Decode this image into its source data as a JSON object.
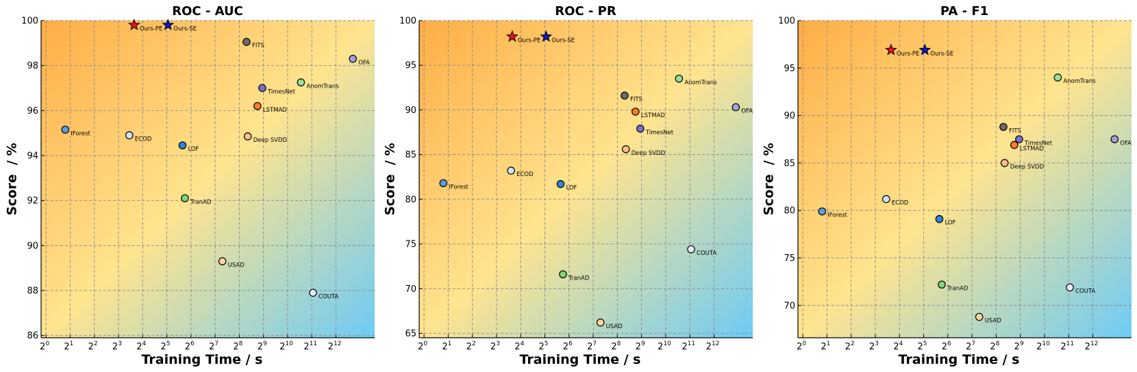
{
  "colors": {
    "bg_top_left": "#ffad45",
    "bg_mid": "#ffe48f",
    "bg_bottom_right": "#6ecbf6",
    "grid": "#888888",
    "star_pe": "#e8141e",
    "star_se": "#0a16c8"
  },
  "x_axis": {
    "label": "Training Time / s",
    "tick_base": "2",
    "tick_exponents": [
      0,
      1,
      2,
      3,
      4,
      5,
      6,
      7,
      8,
      9,
      10,
      11,
      12
    ],
    "range_log2": [
      -0.2,
      13.6
    ]
  },
  "y_axis_label": "Score  / %",
  "chart_data": [
    {
      "type": "scatter",
      "title": "ROC - AUC",
      "ylim": [
        85.9,
        100
      ],
      "yticks": [
        86,
        88,
        90,
        92,
        94,
        96,
        98,
        100
      ],
      "points": [
        {
          "name": "Ours-PE",
          "log2_time": 3.65,
          "score": 99.8,
          "marker": "star",
          "color": "#e8141e"
        },
        {
          "name": "Ours-SE",
          "log2_time": 5.05,
          "score": 99.8,
          "marker": "star",
          "color": "#0a16c8"
        },
        {
          "name": "FITS",
          "log2_time": 8.3,
          "score": 99.05,
          "color": "#6b6b6b"
        },
        {
          "name": "OFA",
          "log2_time": 12.7,
          "score": 98.3,
          "color": "#a3a3d8"
        },
        {
          "name": "AnomTrans",
          "log2_time": 10.55,
          "score": 97.25,
          "color": "#96e0a0"
        },
        {
          "name": "TimesNet",
          "log2_time": 8.95,
          "score": 97.0,
          "color": "#7b6fd0"
        },
        {
          "name": "LSTMAD",
          "log2_time": 8.75,
          "score": 96.2,
          "color": "#ff7a2a"
        },
        {
          "name": "IForest",
          "log2_time": 0.8,
          "score": 95.15,
          "color": "#5b9de0"
        },
        {
          "name": "ECOD",
          "log2_time": 3.45,
          "score": 94.9,
          "color": "#cfe2f5"
        },
        {
          "name": "Deep SVDD",
          "log2_time": 8.35,
          "score": 94.85,
          "color": "#ffbe8c"
        },
        {
          "name": "LOF",
          "log2_time": 5.65,
          "score": 94.45,
          "color": "#2f86d8"
        },
        {
          "name": "TranAD",
          "log2_time": 5.75,
          "score": 92.1,
          "color": "#7fd679"
        },
        {
          "name": "USAD",
          "log2_time": 7.3,
          "score": 89.3,
          "color": "#ffd4a0"
        },
        {
          "name": "COUTA",
          "log2_time": 11.05,
          "score": 87.9,
          "color": "#ececf6"
        }
      ]
    },
    {
      "type": "scatter",
      "title": "ROC - PR",
      "ylim": [
        64.5,
        100
      ],
      "yticks": [
        65,
        70,
        75,
        80,
        85,
        90,
        95,
        100
      ],
      "points": [
        {
          "name": "Ours-PE",
          "log2_time": 3.65,
          "score": 98.2,
          "marker": "star",
          "color": "#e8141e"
        },
        {
          "name": "Ours-SE",
          "log2_time": 5.05,
          "score": 98.2,
          "marker": "star",
          "color": "#0a16c8"
        },
        {
          "name": "AnomTrans",
          "log2_time": 10.55,
          "score": 93.5,
          "color": "#96e0a0"
        },
        {
          "name": "FITS",
          "log2_time": 8.3,
          "score": 91.6,
          "color": "#6b6b6b"
        },
        {
          "name": "OFA",
          "log2_time": 12.9,
          "score": 90.3,
          "color": "#a3a3d8"
        },
        {
          "name": "LSTMAD",
          "log2_time": 8.75,
          "score": 89.8,
          "color": "#ff7a2a"
        },
        {
          "name": "TimesNet",
          "log2_time": 8.95,
          "score": 87.9,
          "color": "#7b6fd0"
        },
        {
          "name": "Deep SVDD",
          "log2_time": 8.35,
          "score": 85.6,
          "color": "#ffbe8c"
        },
        {
          "name": "ECOD",
          "log2_time": 3.6,
          "score": 83.2,
          "color": "#cfe2f5"
        },
        {
          "name": "IForest",
          "log2_time": 0.8,
          "score": 81.8,
          "color": "#5b9de0"
        },
        {
          "name": "LOF",
          "log2_time": 5.65,
          "score": 81.7,
          "color": "#2f86d8"
        },
        {
          "name": "COUTA",
          "log2_time": 11.05,
          "score": 74.4,
          "color": "#ececf6"
        },
        {
          "name": "TranAD",
          "log2_time": 5.75,
          "score": 71.6,
          "color": "#7fd679"
        },
        {
          "name": "USAD",
          "log2_time": 7.3,
          "score": 66.2,
          "color": "#ffd4a0"
        }
      ]
    },
    {
      "type": "scatter",
      "title": "PA - F1",
      "ylim": [
        66.6,
        100
      ],
      "yticks": [
        70,
        75,
        80,
        85,
        90,
        95,
        100
      ],
      "points": [
        {
          "name": "Ours-PE",
          "log2_time": 3.65,
          "score": 96.9,
          "marker": "star",
          "color": "#e8141e"
        },
        {
          "name": "Ours-SE",
          "log2_time": 5.05,
          "score": 96.9,
          "marker": "star",
          "color": "#0a16c8"
        },
        {
          "name": "AnomTrans",
          "log2_time": 10.55,
          "score": 94.0,
          "color": "#96e0a0"
        },
        {
          "name": "FITS",
          "log2_time": 8.3,
          "score": 88.8,
          "color": "#6b6b6b"
        },
        {
          "name": "OFA",
          "log2_time": 12.9,
          "score": 87.5,
          "color": "#a3a3d8"
        },
        {
          "name": "TimesNet",
          "log2_time": 8.95,
          "score": 87.5,
          "color": "#7b6fd0"
        },
        {
          "name": "LSTMAD",
          "log2_time": 8.75,
          "score": 86.9,
          "color": "#ff7a2a"
        },
        {
          "name": "Deep SVDD",
          "log2_time": 8.35,
          "score": 85.0,
          "color": "#ffbe8c"
        },
        {
          "name": "ECOD",
          "log2_time": 3.45,
          "score": 81.2,
          "color": "#cfe2f5"
        },
        {
          "name": "IForest",
          "log2_time": 0.8,
          "score": 79.9,
          "color": "#5b9de0"
        },
        {
          "name": "LOF",
          "log2_time": 5.65,
          "score": 79.1,
          "color": "#2f86d8"
        },
        {
          "name": "TranAD",
          "log2_time": 5.75,
          "score": 72.2,
          "color": "#7fd679"
        },
        {
          "name": "COUTA",
          "log2_time": 11.05,
          "score": 71.9,
          "color": "#ececf6"
        },
        {
          "name": "USAD",
          "log2_time": 7.3,
          "score": 68.8,
          "color": "#ffd4a0"
        }
      ]
    }
  ]
}
